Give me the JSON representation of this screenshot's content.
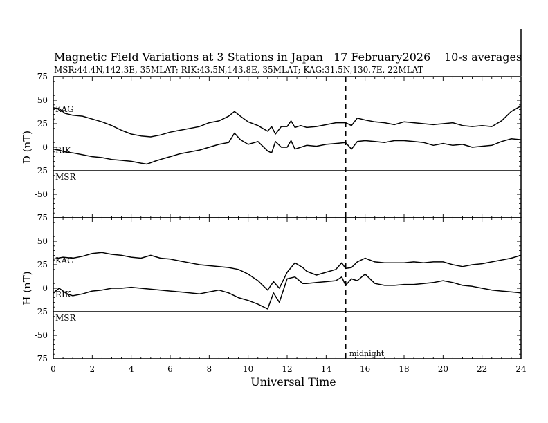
{
  "header": {
    "title": "Magnetic Field Variations at 3 Stations in Japan",
    "date": "17 February2026",
    "averaging": "10-s averages",
    "stations_line": "MSR:44.4N,142.3E, 35MLAT;  RIK:43.5N,143.8E, 35MLAT;  KAG:31.5N,130.7E, 22MLAT"
  },
  "chart_data": [
    {
      "type": "line",
      "panel": "D",
      "ylabel": "D (nT)",
      "xlabel": "Universal Time",
      "xlim": [
        0,
        24
      ],
      "ylim": [
        -75,
        75
      ],
      "x_ticks": [
        0,
        2,
        4,
        6,
        8,
        10,
        12,
        14,
        16,
        18,
        20,
        22,
        24
      ],
      "y_ticks": [
        75,
        50,
        25,
        0,
        -25,
        -50,
        -75
      ],
      "series": [
        {
          "name": "KAG",
          "x": [
            0,
            0.3,
            0.6,
            1,
            1.5,
            2,
            2.5,
            3,
            3.5,
            4,
            4.5,
            5,
            5.5,
            6,
            6.5,
            7,
            7.5,
            8,
            8.5,
            9,
            9.3,
            9.6,
            10,
            10.5,
            11,
            11.2,
            11.4,
            11.7,
            12,
            12.2,
            12.4,
            12.7,
            13,
            13.5,
            14,
            14.5,
            15,
            15.3,
            15.6,
            16,
            16.5,
            17,
            17.5,
            18,
            18.5,
            19,
            19.5,
            20,
            20.5,
            21,
            21.5,
            22,
            22.5,
            23,
            23.5,
            24
          ],
          "values": [
            42,
            41,
            36,
            34,
            33,
            30,
            27,
            23,
            18,
            14,
            12,
            11,
            13,
            16,
            18,
            20,
            22,
            26,
            28,
            33,
            38,
            33,
            27,
            23,
            17,
            22,
            14,
            22,
            22,
            28,
            21,
            23,
            21,
            22,
            24,
            26,
            26,
            23,
            31,
            29,
            27,
            26,
            24,
            27,
            26,
            25,
            24,
            25,
            26,
            23,
            22,
            23,
            22,
            28,
            38,
            44
          ]
        },
        {
          "name": "RIK",
          "x": [
            0,
            0.3,
            0.6,
            1,
            1.5,
            2,
            2.5,
            3,
            3.5,
            4,
            4.5,
            4.8,
            5.2,
            5.5,
            6,
            6.5,
            7,
            7.5,
            8,
            8.5,
            9,
            9.3,
            9.6,
            10,
            10.5,
            11,
            11.2,
            11.4,
            11.7,
            12,
            12.2,
            12.4,
            12.7,
            13,
            13.5,
            14,
            14.5,
            15,
            15.3,
            15.6,
            16,
            16.5,
            17,
            17.5,
            18,
            18.5,
            19,
            19.5,
            20,
            20.5,
            21,
            21.5,
            22,
            22.5,
            23,
            23.5,
            24
          ],
          "values": [
            -2,
            -3,
            -5,
            -6,
            -8,
            -10,
            -11,
            -13,
            -14,
            -15,
            -17,
            -18,
            -15,
            -13,
            -10,
            -7,
            -5,
            -3,
            0,
            3,
            5,
            15,
            8,
            3,
            6,
            -4,
            -6,
            6,
            0,
            0,
            7,
            -2,
            0,
            2,
            1,
            3,
            4,
            5,
            -2,
            6,
            7,
            6,
            5,
            7,
            7,
            6,
            5,
            2,
            4,
            2,
            3,
            0,
            1,
            2,
            6,
            9,
            8
          ]
        },
        {
          "name": "MSR",
          "x": [
            0,
            24
          ],
          "values": [
            -25,
            -25
          ]
        }
      ]
    },
    {
      "type": "line",
      "panel": "H",
      "ylabel": "H (nT)",
      "xlabel": "Universal Time",
      "xlim": [
        0,
        24
      ],
      "ylim": [
        -75,
        75
      ],
      "x_ticks": [
        0,
        2,
        4,
        6,
        8,
        10,
        12,
        14,
        16,
        18,
        20,
        22,
        24
      ],
      "y_ticks": [
        75,
        50,
        25,
        0,
        -25,
        -50,
        -75
      ],
      "series": [
        {
          "name": "KAG",
          "x": [
            0,
            0.5,
            1,
            1.5,
            2,
            2.5,
            3,
            3.5,
            4,
            4.5,
            5,
            5.5,
            6,
            6.5,
            7,
            7.5,
            8,
            8.5,
            9,
            9.5,
            10,
            10.5,
            11,
            11.3,
            11.6,
            12,
            12.4,
            12.8,
            13,
            13.5,
            14,
            14.5,
            14.8,
            15,
            15.3,
            15.6,
            16,
            16.5,
            17,
            17.5,
            18,
            18.5,
            19,
            19.5,
            20,
            20.5,
            21,
            21.5,
            22,
            22.5,
            23,
            23.5,
            24
          ],
          "values": [
            31,
            33,
            32,
            34,
            37,
            38,
            36,
            35,
            33,
            32,
            35,
            32,
            31,
            29,
            27,
            25,
            24,
            23,
            22,
            20,
            15,
            8,
            -2,
            7,
            0,
            17,
            27,
            22,
            18,
            14,
            17,
            20,
            27,
            21,
            22,
            28,
            32,
            28,
            27,
            27,
            27,
            28,
            27,
            28,
            28,
            25,
            23,
            25,
            26,
            28,
            30,
            32,
            35
          ]
        },
        {
          "name": "RIK",
          "x": [
            0,
            0.3,
            0.7,
            1,
            1.5,
            2,
            2.5,
            3,
            3.5,
            4,
            4.5,
            5,
            5.5,
            6,
            6.5,
            7,
            7.5,
            8,
            8.5,
            9,
            9.5,
            10,
            10.5,
            11,
            11.3,
            11.6,
            12,
            12.4,
            12.8,
            13,
            13.5,
            14,
            14.5,
            14.8,
            15,
            15.3,
            15.6,
            16,
            16.5,
            17,
            17.5,
            18,
            18.5,
            19,
            19.5,
            20,
            20.5,
            21,
            21.5,
            22,
            22.5,
            23,
            23.5,
            24
          ],
          "values": [
            -5,
            0,
            -6,
            -8,
            -6,
            -3,
            -2,
            0,
            0,
            1,
            0,
            -1,
            -2,
            -3,
            -4,
            -5,
            -6,
            -4,
            -2,
            -5,
            -10,
            -13,
            -17,
            -22,
            -5,
            -15,
            10,
            12,
            5,
            5,
            6,
            7,
            8,
            12,
            3,
            10,
            8,
            15,
            5,
            3,
            3,
            4,
            4,
            5,
            6,
            8,
            6,
            3,
            2,
            0,
            -2,
            -3,
            -4,
            -5
          ]
        },
        {
          "name": "MSR",
          "x": [
            0,
            24
          ],
          "values": [
            -25,
            -25
          ]
        }
      ]
    }
  ],
  "annotations": {
    "midnight_label": "midnight",
    "midnight_ut": 15
  },
  "colors": {
    "line": "#000000",
    "background": "#ffffff"
  }
}
